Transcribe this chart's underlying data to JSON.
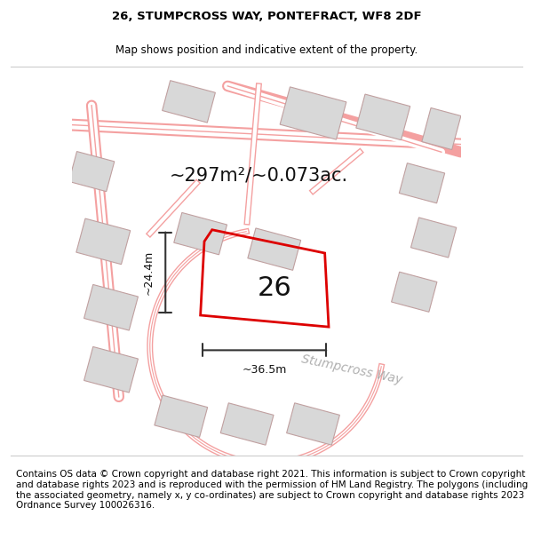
{
  "title_line1": "26, STUMPCROSS WAY, PONTEFRACT, WF8 2DF",
  "title_line2": "Map shows position and indicative extent of the property.",
  "footer_text": "Contains OS data © Crown copyright and database right 2021. This information is subject to Crown copyright and database rights 2023 and is reproduced with the permission of HM Land Registry. The polygons (including the associated geometry, namely x, y co-ordinates) are subject to Crown copyright and database rights 2023 Ordnance Survey 100026316.",
  "area_text": "~297m²/~0.073ac.",
  "property_number": "26",
  "width_label": "~36.5m",
  "height_label": "~24.4m",
  "street_label": "Stumpcross Way",
  "bg_color": "#ffffff",
  "map_bg_color": "#ffffff",
  "road_color": "#f4a0a0",
  "building_fill": "#d8d8d8",
  "building_edge": "#c0a0a0",
  "property_outline_color": "#dd0000",
  "property_fill": "none",
  "dim_line_color": "#333333",
  "title_fontsize": 9.5,
  "subtitle_fontsize": 8.5,
  "footer_fontsize": 7.5,
  "area_fontsize": 16,
  "number_fontsize": 20,
  "label_fontsize": 9,
  "street_label_fontsize": 10,
  "map_xlim": [
    0,
    1
  ],
  "map_ylim": [
    0,
    1
  ]
}
